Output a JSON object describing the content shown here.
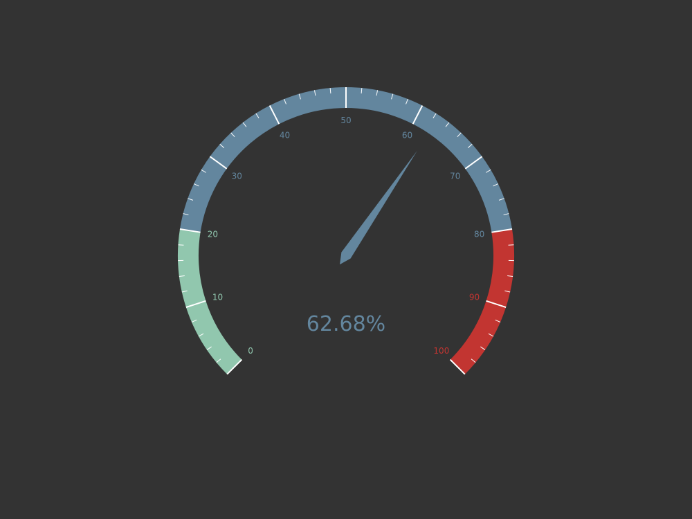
{
  "chart_data": {
    "type": "gauge",
    "title": "",
    "min": 0,
    "max": 100,
    "value": 62.68,
    "value_display": "62.68%",
    "start_angle_deg": 225,
    "end_angle_deg": -45,
    "split_number": 10,
    "minor_ticks_per_split": 5,
    "tick_labels": [
      "0",
      "10",
      "20",
      "30",
      "40",
      "50",
      "60",
      "70",
      "80",
      "90",
      "100"
    ],
    "bands": [
      {
        "from": 0,
        "to": 20,
        "color": "#91c7ae"
      },
      {
        "from": 20,
        "to": 80,
        "color": "#63869e"
      },
      {
        "from": 80,
        "to": 100,
        "color": "#c23531"
      }
    ],
    "tick_color": "#ffffff",
    "value_color": "#63869e",
    "pointer_color": "#63869e",
    "background": "#333333"
  }
}
